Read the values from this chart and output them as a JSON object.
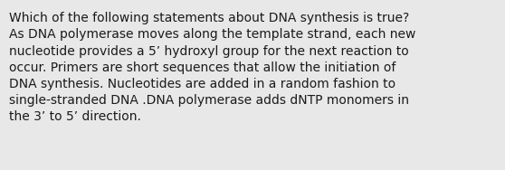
{
  "background_color": "#e8e8e8",
  "text_color": "#1a1a1a",
  "text": "Which of the following statements about DNA synthesis is true?\nAs DNA polymerase moves along the template strand, each new\nnucleotide provides a 5’ hydroxyl group for the next reaction to\noccur. Primers are short sequences that allow the initiation of\nDNA synthesis. Nucleotides are added in a random fashion to\nsingle-stranded DNA .DNA polymerase adds dNTP monomers in\nthe 3’ to 5’ direction.",
  "font_size": 10.0,
  "font_family": "DejaVu Sans",
  "fig_width": 5.58,
  "fig_height": 1.88,
  "dpi": 100
}
